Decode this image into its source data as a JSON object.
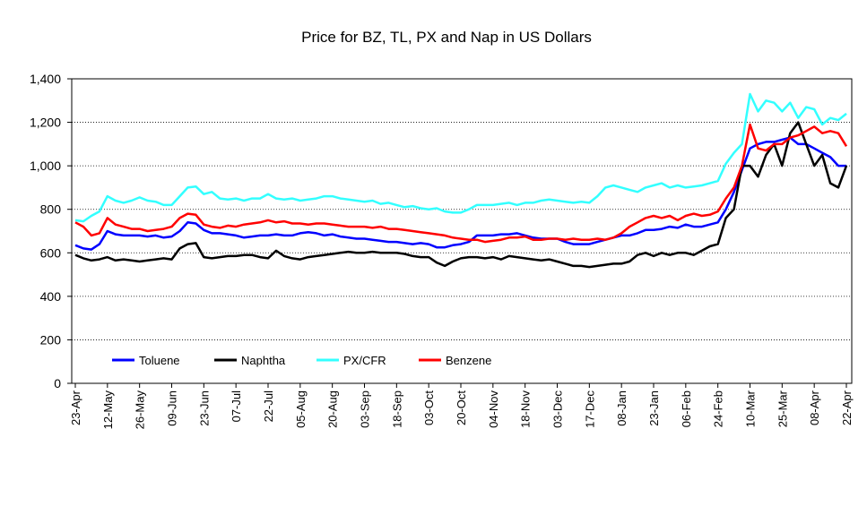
{
  "chart_data": {
    "type": "line",
    "title": "Price for BZ, TL, PX and Nap in US Dollars",
    "categories": [
      "23-Apr",
      null,
      null,
      null,
      "12-May",
      null,
      null,
      null,
      "26-May",
      null,
      null,
      null,
      "09-Jun",
      null,
      null,
      null,
      "23-Jun",
      null,
      null,
      null,
      "07-Jul",
      null,
      null,
      null,
      "22-Jul",
      null,
      null,
      null,
      "05-Aug",
      null,
      null,
      null,
      "20-Aug",
      null,
      null,
      null,
      "03-Sep",
      null,
      null,
      null,
      "18-Sep",
      null,
      null,
      null,
      "03-Oct",
      null,
      null,
      null,
      "20-Oct",
      null,
      null,
      null,
      "04-Nov",
      null,
      null,
      null,
      "18-Nov",
      null,
      null,
      null,
      "03-Dec",
      null,
      null,
      null,
      "17-Dec",
      null,
      null,
      null,
      "08-Jan",
      null,
      null,
      null,
      "23-Jan",
      null,
      null,
      null,
      "06-Feb",
      null,
      null,
      null,
      "24-Feb",
      null,
      null,
      null,
      "10-Mar",
      null,
      null,
      null,
      "25-Mar",
      null,
      null,
      null,
      "08-Apr",
      null,
      null,
      null,
      "22-Apr"
    ],
    "series": [
      {
        "name": "Toluene",
        "color": "#0000ff",
        "values": [
          635,
          620,
          615,
          640,
          700,
          685,
          680,
          680,
          680,
          675,
          680,
          670,
          675,
          700,
          740,
          735,
          705,
          690,
          690,
          685,
          680,
          670,
          675,
          680,
          680,
          685,
          680,
          680,
          690,
          695,
          690,
          680,
          685,
          675,
          670,
          665,
          665,
          660,
          655,
          650,
          650,
          645,
          640,
          645,
          640,
          625,
          625,
          635,
          640,
          650,
          680,
          680,
          680,
          685,
          685,
          690,
          680,
          670,
          665,
          665,
          665,
          650,
          640,
          640,
          640,
          650,
          660,
          670,
          680,
          680,
          690,
          705,
          705,
          710,
          720,
          715,
          730,
          720,
          720,
          730,
          740,
          800,
          880,
          980,
          1080,
          1100,
          1110,
          1110,
          1120,
          1130,
          1100,
          1100,
          1080,
          1060,
          1040,
          1000,
          1000
        ]
      },
      {
        "name": "Naphtha",
        "color": "#000000",
        "values": [
          590,
          575,
          565,
          570,
          580,
          565,
          570,
          565,
          560,
          565,
          570,
          575,
          570,
          620,
          640,
          645,
          580,
          575,
          580,
          585,
          585,
          590,
          590,
          580,
          575,
          610,
          585,
          575,
          570,
          580,
          585,
          590,
          595,
          600,
          605,
          600,
          600,
          605,
          600,
          600,
          600,
          595,
          585,
          580,
          580,
          555,
          540,
          560,
          575,
          580,
          580,
          575,
          580,
          570,
          585,
          580,
          575,
          570,
          565,
          570,
          560,
          550,
          540,
          540,
          535,
          540,
          545,
          550,
          550,
          560,
          590,
          600,
          585,
          600,
          590,
          600,
          600,
          590,
          610,
          630,
          640,
          760,
          800,
          1000,
          1000,
          950,
          1050,
          1100,
          1000,
          1150,
          1200,
          1100,
          1000,
          1050,
          920,
          900,
          1000
        ]
      },
      {
        "name": "PX/CFR",
        "color": "#33ffff",
        "values": [
          750,
          745,
          770,
          790,
          860,
          840,
          830,
          840,
          855,
          840,
          835,
          820,
          820,
          860,
          900,
          905,
          870,
          880,
          850,
          845,
          850,
          840,
          850,
          850,
          870,
          850,
          845,
          850,
          840,
          845,
          850,
          860,
          860,
          850,
          845,
          840,
          835,
          840,
          825,
          830,
          820,
          810,
          815,
          805,
          800,
          805,
          790,
          785,
          785,
          800,
          820,
          820,
          820,
          825,
          830,
          820,
          830,
          830,
          840,
          845,
          840,
          835,
          830,
          835,
          830,
          860,
          900,
          910,
          900,
          890,
          880,
          900,
          910,
          920,
          900,
          910,
          900,
          905,
          910,
          920,
          930,
          1010,
          1060,
          1100,
          1330,
          1250,
          1300,
          1290,
          1250,
          1290,
          1220,
          1270,
          1260,
          1190,
          1220,
          1210,
          1240
        ]
      },
      {
        "name": "Benzene",
        "color": "#ff0000",
        "values": [
          740,
          720,
          680,
          690,
          760,
          730,
          720,
          710,
          710,
          700,
          705,
          710,
          720,
          760,
          780,
          775,
          730,
          720,
          715,
          725,
          720,
          730,
          735,
          740,
          750,
          740,
          745,
          735,
          735,
          730,
          735,
          735,
          730,
          725,
          720,
          720,
          720,
          715,
          720,
          710,
          710,
          705,
          700,
          695,
          690,
          685,
          680,
          670,
          665,
          660,
          660,
          650,
          655,
          660,
          670,
          670,
          675,
          660,
          660,
          665,
          665,
          660,
          665,
          660,
          660,
          665,
          660,
          670,
          690,
          720,
          740,
          760,
          770,
          760,
          770,
          750,
          770,
          780,
          770,
          775,
          790,
          850,
          900,
          1000,
          1190,
          1080,
          1070,
          1100,
          1100,
          1130,
          1140,
          1160,
          1180,
          1150,
          1160,
          1150,
          1090
        ]
      }
    ],
    "ylim": [
      0,
      1400
    ],
    "yticks": [
      0,
      200,
      400,
      600,
      800,
      {
        "value": 1000,
        "label": "1,000"
      },
      {
        "value": 1200,
        "label": "1,200"
      },
      {
        "value": 1400,
        "label": "1,400"
      }
    ],
    "grid": true,
    "legend": "bottom-left"
  }
}
